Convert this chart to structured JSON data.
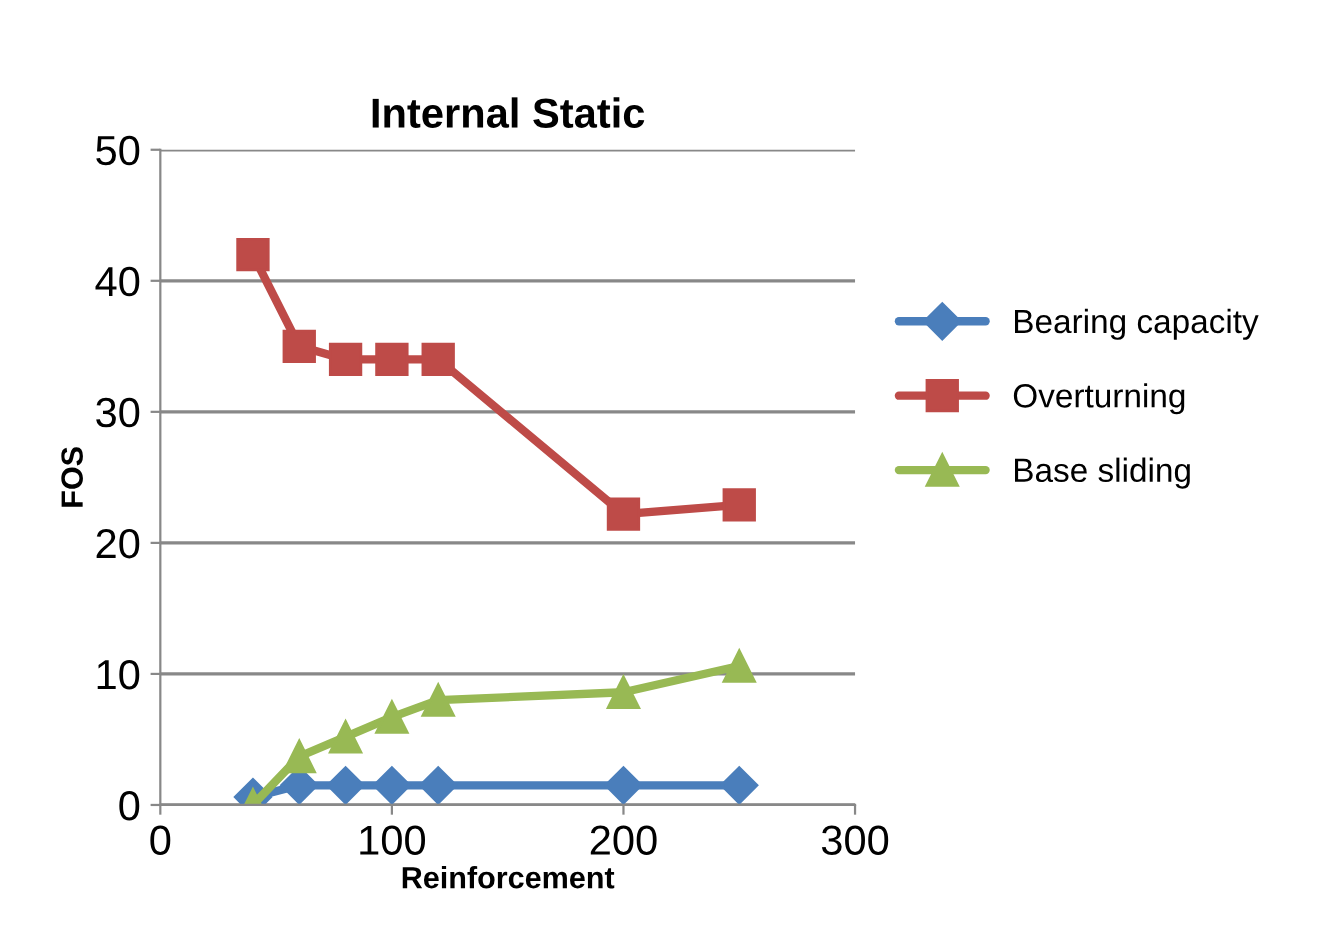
{
  "chart_data": {
    "type": "line",
    "title": "Internal Static",
    "xlabel": "Reinforcement",
    "ylabel": "FOS",
    "x": [
      40,
      60,
      80,
      100,
      120,
      200,
      250
    ],
    "series": [
      {
        "name": "Bearing capacity",
        "color": "#4a7ebb",
        "marker": "diamond",
        "values": [
          0.6,
          1.5,
          1.5,
          1.5,
          1.5,
          1.5,
          1.5
        ]
      },
      {
        "name": "Overturning",
        "color": "#be4b48",
        "marker": "square",
        "values": [
          42,
          35,
          34,
          34,
          34,
          22.2,
          22.9
        ]
      },
      {
        "name": "Base sliding",
        "color": "#98b954",
        "marker": "triangle",
        "values": [
          0,
          3.7,
          5.2,
          6.7,
          8.0,
          8.6,
          10.6
        ]
      }
    ],
    "xlim": [
      0,
      300
    ],
    "xticks": [
      0,
      100,
      200,
      300
    ],
    "ylim": [
      0,
      50
    ],
    "yticks": [
      0,
      10,
      20,
      30,
      40,
      50
    ],
    "grid": "y",
    "legend": "right",
    "line_style": "solid"
  }
}
